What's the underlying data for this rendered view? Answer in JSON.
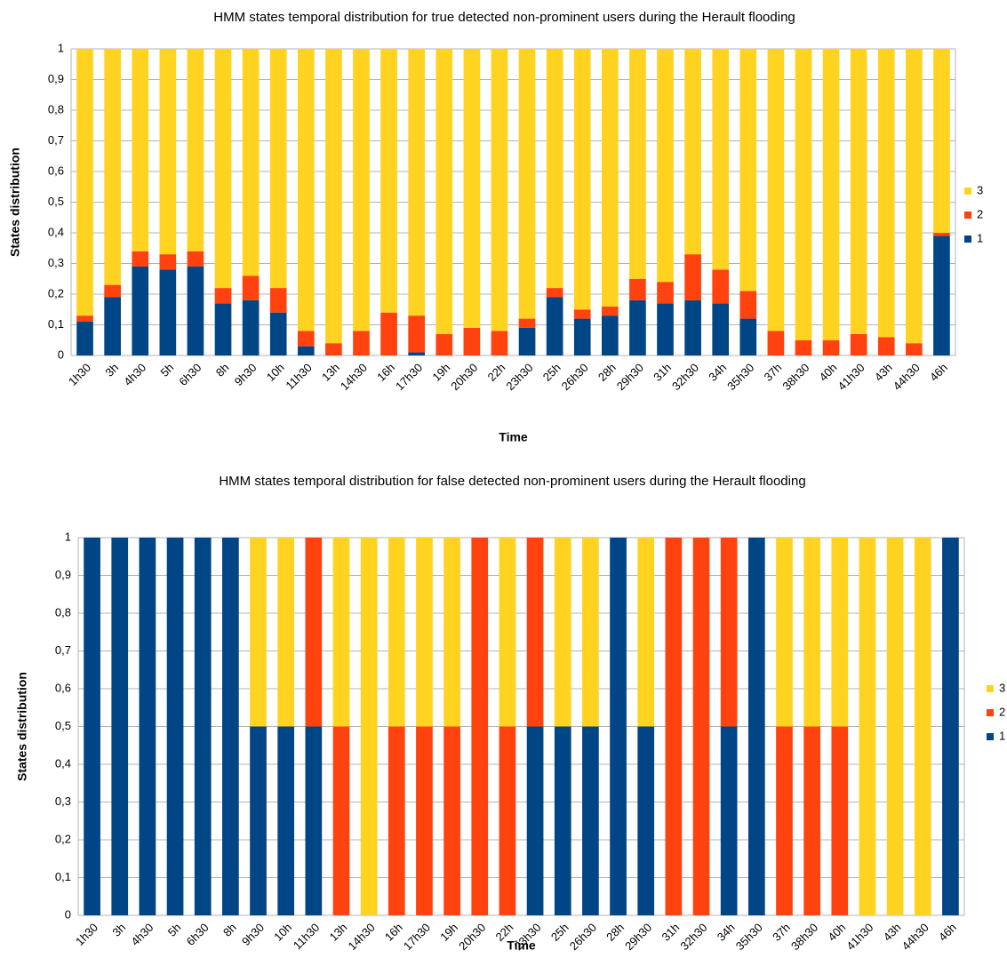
{
  "chart_data": [
    {
      "type": "stacked_bar",
      "title": "HMM states temporal distribution for true detected non-prominent users during the Herault flooding",
      "x_label": "Time",
      "y_label": "States distribution",
      "categories": [
        "1h30",
        "3h",
        "4h30",
        "5h",
        "6h30",
        "8h",
        "9h30",
        "10h",
        "11h30",
        "13h",
        "14h30",
        "16h",
        "17h30",
        "19h",
        "20h30",
        "22h",
        "23h30",
        "25h",
        "26h30",
        "28h",
        "29h30",
        "31h",
        "32h30",
        "34h",
        "35h30",
        "37h",
        "38h30",
        "40h",
        "41h30",
        "43h",
        "44h30",
        "46h"
      ],
      "series": [
        {
          "name": "1",
          "color": "#004586",
          "values": [
            0.11,
            0.19,
            0.29,
            0.28,
            0.29,
            0.17,
            0.18,
            0.14,
            0.03,
            0,
            0,
            0,
            0.01,
            0,
            0,
            0,
            0.09,
            0.19,
            0.12,
            0.13,
            0.18,
            0.17,
            0.18,
            0.17,
            0.12,
            0,
            0,
            0,
            0,
            0,
            0,
            0.39
          ]
        },
        {
          "name": "2",
          "color": "#ff420e",
          "values": [
            0.02,
            0.04,
            0.05,
            0.05,
            0.05,
            0.05,
            0.08,
            0.08,
            0.05,
            0.04,
            0.08,
            0.14,
            0.12,
            0.07,
            0.09,
            0.08,
            0.03,
            0.03,
            0.03,
            0.03,
            0.07,
            0.07,
            0.15,
            0.11,
            0.09,
            0.08,
            0.05,
            0.05,
            0.07,
            0.06,
            0.04,
            0.01
          ]
        },
        {
          "name": "3",
          "color": "#ffd320",
          "values": [
            0.87,
            0.77,
            0.66,
            0.67,
            0.66,
            0.78,
            0.74,
            0.78,
            0.92,
            0.96,
            0.92,
            0.86,
            0.87,
            0.93,
            0.91,
            0.92,
            0.88,
            0.78,
            0.85,
            0.84,
            0.75,
            0.76,
            0.67,
            0.72,
            0.79,
            0.92,
            0.95,
            0.95,
            0.93,
            0.94,
            0.96,
            0.6
          ]
        }
      ],
      "ylim": [
        0,
        1
      ],
      "yticks": [
        0,
        {
          "value": 0.1,
          "label": "0,1"
        },
        {
          "value": 0.2,
          "label": "0,2"
        },
        {
          "value": 0.3,
          "label": "0,3"
        },
        {
          "value": 0.4,
          "label": "0,4"
        },
        {
          "value": 0.5,
          "label": "0,5"
        },
        {
          "value": 0.6,
          "label": "0,6"
        },
        {
          "value": 0.7,
          "label": "0,7"
        },
        {
          "value": 0.8,
          "label": "0,8"
        },
        {
          "value": 0.9,
          "label": "0,9"
        },
        1
      ],
      "grid": true,
      "legend": "right"
    },
    {
      "type": "stacked_bar",
      "title": "HMM states temporal distribution for false detected non-prominent users during the Herault flooding",
      "x_label": "Time",
      "y_label": "States distribution",
      "categories": [
        "1h30",
        "3h",
        "4h30",
        "5h",
        "6h30",
        "8h",
        "9h30",
        "10h",
        "11h30",
        "13h",
        "14h30",
        "16h",
        "17h30",
        "19h",
        "20h30",
        "22h",
        "23h30",
        "25h",
        "26h30",
        "28h",
        "29h30",
        "31h",
        "32h30",
        "34h",
        "35h30",
        "37h",
        "38h30",
        "40h",
        "41h30",
        "43h",
        "44h30",
        "46h"
      ],
      "series": [
        {
          "name": "1",
          "color": "#004586",
          "values": [
            1,
            1,
            1,
            1,
            1,
            1,
            0.5,
            0.5,
            0.5,
            0,
            0,
            0,
            0,
            0,
            0,
            0,
            0.5,
            0.5,
            0.5,
            1,
            0.5,
            0,
            0,
            0.5,
            1,
            0,
            0,
            0,
            0,
            0,
            0,
            1
          ]
        },
        {
          "name": "2",
          "color": "#ff420e",
          "values": [
            0,
            0,
            0,
            0,
            0,
            0,
            0,
            0,
            0.5,
            0.5,
            0,
            0.5,
            0.5,
            0.5,
            1,
            0.5,
            0.5,
            0,
            0,
            0,
            0,
            1,
            1,
            0.5,
            0,
            0.5,
            0.5,
            0.5,
            0,
            0,
            0,
            0
          ]
        },
        {
          "name": "3",
          "color": "#ffd320",
          "values": [
            0,
            0,
            0,
            0,
            0,
            0,
            0.5,
            0.5,
            0,
            0.5,
            1,
            0.5,
            0.5,
            0.5,
            0,
            0.5,
            0,
            0.5,
            0.5,
            0,
            0.5,
            0,
            0,
            0,
            0,
            0.5,
            0.5,
            0.5,
            1,
            1,
            1,
            0
          ]
        }
      ],
      "ylim": [
        0,
        1
      ],
      "yticks": [
        0,
        {
          "value": 0.1,
          "label": "0,1"
        },
        {
          "value": 0.2,
          "label": "0,2"
        },
        {
          "value": 0.3,
          "label": "0,3"
        },
        {
          "value": 0.4,
          "label": "0,4"
        },
        {
          "value": 0.5,
          "label": "0,5"
        },
        {
          "value": 0.6,
          "label": "0,6"
        },
        {
          "value": 0.7,
          "label": "0,7"
        },
        {
          "value": 0.8,
          "label": "0,8"
        },
        {
          "value": 0.9,
          "label": "0,9"
        },
        1
      ],
      "grid": true,
      "legend": "right"
    }
  ]
}
